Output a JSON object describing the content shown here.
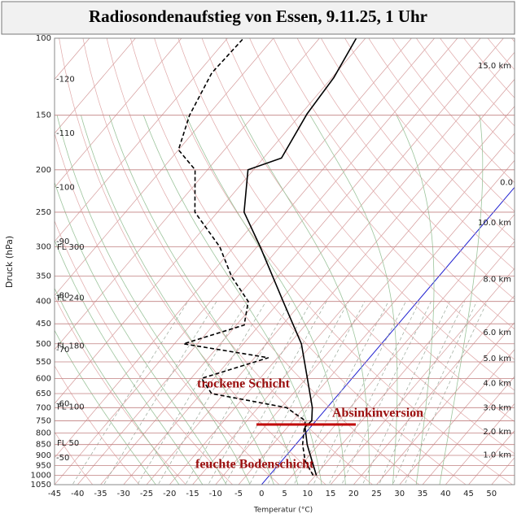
{
  "chart_data": {
    "type": "skewt",
    "title": "Radiosondenaufstieg von Essen, 9.11.25, 1 Uhr",
    "y_label": "Druck (hPa)",
    "x_label": "Temperatur (°C)",
    "log_y": true,
    "xlim": [
      -45,
      55
    ],
    "ylim": [
      1050,
      100
    ],
    "xticks": [
      -45,
      -40,
      -35,
      -30,
      -25,
      -20,
      -15,
      -10,
      -5,
      0,
      5,
      10,
      15,
      20,
      25,
      30,
      35,
      40,
      45,
      50
    ],
    "yticks": [
      100,
      150,
      200,
      250,
      300,
      350,
      400,
      450,
      500,
      550,
      600,
      650,
      700,
      750,
      800,
      850,
      900,
      950,
      1000,
      1050
    ],
    "isotherm_labels": [
      -120,
      -110,
      -100,
      -90,
      -80,
      -70,
      -60,
      -50
    ],
    "zero_isotherm_label": "0.0",
    "flight_levels": [
      {
        "value": 300,
        "label": "FL 300"
      },
      {
        "value": 240,
        "label": "FL 240"
      },
      {
        "value": 180,
        "label": "FL 180"
      },
      {
        "value": 100,
        "label": "FL 100"
      },
      {
        "value": 50,
        "label": "FL 50"
      }
    ],
    "heights_km": [
      {
        "value": 15,
        "label": "15.0 km"
      },
      {
        "value": 10,
        "label": "10.0 km"
      },
      {
        "value": 8,
        "label": "8.0 km"
      },
      {
        "value": 6,
        "label": "6.0 km"
      },
      {
        "value": 5,
        "label": "5.0 km"
      },
      {
        "value": 4,
        "label": "4.0 km"
      },
      {
        "value": 3,
        "label": "3.0 km"
      },
      {
        "value": 2,
        "label": "2.0 km"
      },
      {
        "value": 1,
        "label": "1.0 km"
      }
    ],
    "series": [
      {
        "color": "#000000",
        "dashed": false,
        "pressure": [
          1000,
          925,
          850,
          775,
          750,
          700,
          600,
          500,
          400,
          300,
          250,
          200,
          188,
          149,
          123,
          100
        ],
        "values": [
          10.2,
          6.5,
          2.5,
          -1.2,
          -0.9,
          -3.2,
          -9.7,
          -17.4,
          -29.2,
          -44.3,
          -54.2,
          -61.2,
          -56.1,
          -58.7,
          -59.6,
          -62
        ]
      },
      {
        "color": "#000000",
        "dashed": true,
        "pressure": [
          1000,
          925,
          850,
          800,
          750,
          700,
          650,
          600,
          538,
          500,
          453,
          400,
          351,
          300,
          250,
          200,
          180,
          150,
          120,
          100
        ],
        "values": [
          9.5,
          5,
          1.5,
          -0.4,
          -2.3,
          -8.8,
          -27.7,
          -32.7,
          -22,
          -43,
          -33.3,
          -36.8,
          -45,
          -53.1,
          -64.9,
          -72.7,
          -80,
          -84,
          -87,
          -86.5
        ]
      }
    ],
    "annotations": [
      "trockene Schicht",
      "Absinkinversion",
      "feuchte Bodenschicht"
    ]
  }
}
